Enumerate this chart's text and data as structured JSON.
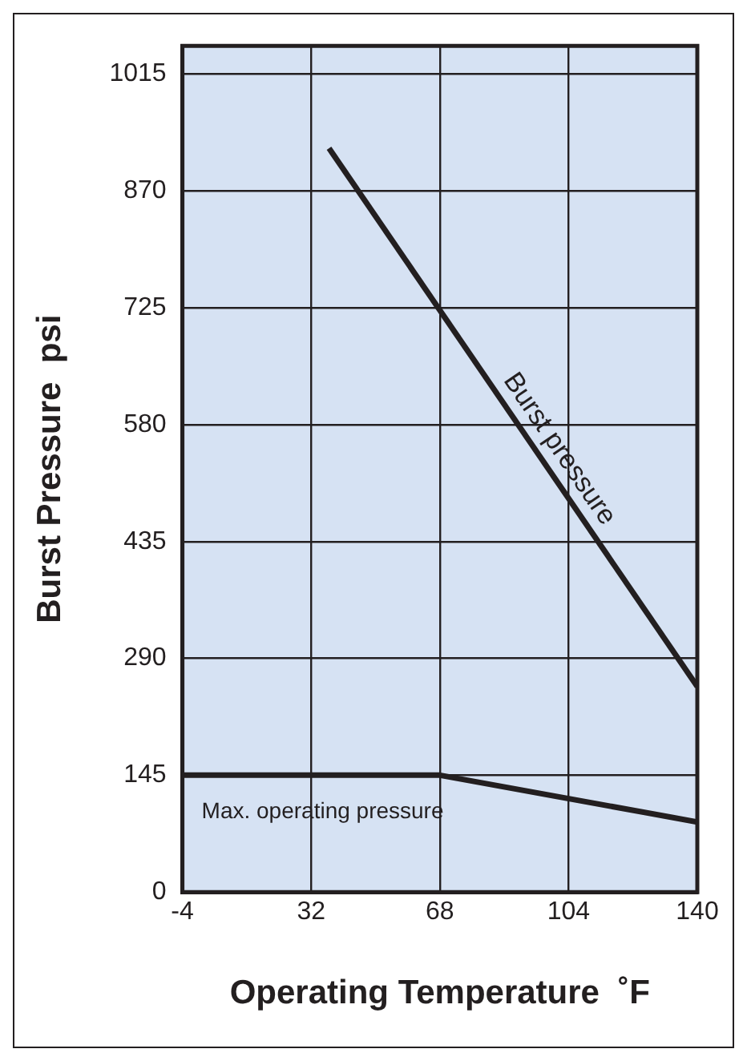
{
  "chart_data": {
    "type": "line",
    "xlabel": "Operating Temperature  ˚F",
    "ylabel": "Burst Pressure  psi",
    "xlim": [
      -4,
      140
    ],
    "xticks": [
      -4,
      32,
      68,
      104,
      140
    ],
    "ylim": [
      0,
      1050
    ],
    "yticks": [
      0,
      145,
      290,
      435,
      580,
      725,
      870,
      1015
    ],
    "grid": true,
    "legend": false,
    "series": [
      {
        "name": "Burst pressure",
        "color": "#231f20",
        "x": [
          37,
          140
        ],
        "values": [
          923,
          255
        ]
      },
      {
        "name": "Max. operating pressure",
        "color": "#231f20",
        "x": [
          -4,
          68,
          140
        ],
        "values": [
          145,
          145,
          87
        ]
      }
    ]
  }
}
